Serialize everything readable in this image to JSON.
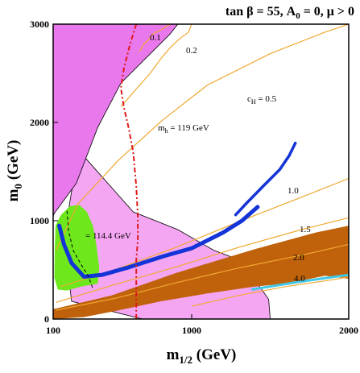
{
  "chart_data": {
    "type": "contour",
    "title": "tan β = 55, A",
    "title_sub": "0",
    "title_rest": " = 0, μ > 0",
    "xlabel": "m",
    "xlabel_sub": "1/2",
    "xlabel_unit": " (GeV)",
    "ylabel": "m",
    "ylabel_sub": "0",
    "ylabel_unit": " (GeV)",
    "xlim": [
      100,
      2000
    ],
    "ylim": [
      0,
      3000
    ],
    "x_ticks": [
      100,
      1000,
      2000
    ],
    "y_ticks": [
      0,
      1000,
      2000,
      3000
    ],
    "x_tick_labels": [
      "100",
      "1000",
      "2000"
    ],
    "y_tick_labels": [
      "0",
      "1000",
      "2000",
      "3000"
    ],
    "grid": false,
    "colors": {
      "magenta_region": "#e878ec",
      "pink_region": "#f4a6f2",
      "brown_region": "#c0620c",
      "green_region": "#6ee81c",
      "dark_matter_band": "#1434d8",
      "higgs_contour": "#e01818",
      "fine_tuning": "#f0a830",
      "cyan_edge": "#40c8e8"
    },
    "annotations": {
      "mh_line": "m",
      "mh_sub": "h",
      "mh_value": " = 119 GeV",
      "mh_lep": "= 114.4 GeV",
      "cH_label": "c",
      "cH_sub": "H",
      "cH_value": " =  0.5",
      "ft_01": "0.1",
      "ft_02": "0.2",
      "ft_10": "1.0",
      "ft_15": "1.5",
      "ft_20": "2.0",
      "ft_40": "4.0"
    },
    "regions": {
      "magenta_top_left": [
        [
          100,
          3000
        ],
        [
          910,
          3000
        ],
        [
          860,
          2900
        ],
        [
          540,
          2400
        ],
        [
          390,
          1950
        ],
        [
          250,
          1380
        ],
        [
          110,
          1080
        ],
        [
          100,
          1050
        ]
      ],
      "pink_central": [
        [
          280,
          1690
        ],
        [
          620,
          1090
        ],
        [
          910,
          910
        ],
        [
          1140,
          700
        ],
        [
          1320,
          590
        ],
        [
          1490,
          200
        ],
        [
          1500,
          0
        ],
        [
          680,
          0
        ],
        [
          220,
          180
        ],
        [
          170,
          820
        ],
        [
          220,
          1300
        ]
      ],
      "green_blob": [
        [
          115,
          950
        ],
        [
          150,
          1060
        ],
        [
          210,
          1150
        ],
        [
          270,
          1160
        ],
        [
          320,
          1090
        ],
        [
          360,
          940
        ],
        [
          380,
          760
        ],
        [
          400,
          520
        ],
        [
          390,
          360
        ],
        [
          280,
          330
        ],
        [
          190,
          290
        ],
        [
          130,
          300
        ],
        [
          108,
          420
        ],
        [
          110,
          700
        ]
      ],
      "brown_band": [
        [
          100,
          100
        ],
        [
          480,
          240
        ],
        [
          900,
          470
        ],
        [
          1400,
          710
        ],
        [
          1790,
          880
        ],
        [
          2000,
          950
        ],
        [
          2000,
          410
        ],
        [
          1850,
          440
        ],
        [
          1600,
          360
        ],
        [
          1400,
          330
        ],
        [
          1100,
          260
        ],
        [
          800,
          180
        ],
        [
          500,
          80
        ],
        [
          300,
          20
        ],
        [
          100,
          0
        ]
      ],
      "cyan_edge": [
        [
          1380,
          300
        ],
        [
          1500,
          330
        ],
        [
          1650,
          370
        ],
        [
          1820,
          410
        ],
        [
          1960,
          440
        ],
        [
          2000,
          450
        ]
      ]
    },
    "dark_matter_band": [
      [
        [
          140,
          950
        ],
        [
          170,
          760
        ],
        [
          220,
          570
        ],
        [
          300,
          430
        ],
        [
          420,
          450
        ],
        [
          600,
          530
        ],
        [
          820,
          640
        ],
        [
          1000,
          720
        ],
        [
          1200,
          880
        ],
        [
          1320,
          1000
        ],
        [
          1420,
          1140
        ]
      ],
      [
        [
          1280,
          1060
        ],
        [
          1350,
          1180
        ],
        [
          1460,
          1360
        ],
        [
          1560,
          1520
        ],
        [
          1620,
          1660
        ],
        [
          1660,
          1790
        ]
      ]
    ],
    "higgs_contours": [
      {
        "label": "m_h = 119 GeV",
        "points": [
          [
            640,
            3000
          ],
          [
            600,
            2800
          ],
          [
            560,
            2550
          ],
          [
            540,
            2350
          ],
          [
            560,
            2150
          ],
          [
            590,
            1950
          ],
          [
            620,
            1700
          ],
          [
            640,
            1350
          ],
          [
            650,
            1050
          ],
          [
            650,
            800
          ],
          [
            640,
            600
          ],
          [
            640,
            0
          ]
        ]
      },
      {
        "label": "m_h = 114.4 GeV",
        "points": [
          [
            190,
            1100
          ],
          [
            200,
            900
          ],
          [
            230,
            700
          ],
          [
            280,
            560
          ],
          [
            330,
            430
          ],
          [
            360,
            300
          ]
        ]
      }
    ],
    "fine_tuning_contours": [
      {
        "label": "0.1",
        "points": [
          [
            860,
            3000
          ],
          [
            820,
            2960
          ],
          [
            770,
            2920
          ],
          [
            740,
            2890
          ],
          [
            720,
            2840
          ],
          [
            690,
            2800
          ],
          [
            660,
            2720
          ]
        ]
      },
      {
        "label": "0.2",
        "points": [
          [
            1000,
            3000
          ],
          [
            980,
            2920
          ],
          [
            920,
            2850
          ],
          [
            860,
            2760
          ],
          [
            800,
            2650
          ],
          [
            730,
            2500
          ],
          [
            640,
            2340
          ],
          [
            540,
            2160
          ]
        ]
      },
      {
        "label": "0.5",
        "points": [
          [
            120,
            700
          ],
          [
            260,
            1170
          ],
          [
            520,
            1610
          ],
          [
            800,
            2010
          ],
          [
            1100,
            2380
          ],
          [
            1500,
            2700
          ],
          [
            1850,
            2920
          ],
          [
            2000,
            3000
          ]
        ]
      },
      {
        "label": "1.0",
        "points": [
          [
            150,
            330
          ],
          [
            500,
            500
          ],
          [
            900,
            730
          ],
          [
            1300,
            990
          ],
          [
            1700,
            1240
          ],
          [
            2000,
            1430
          ]
        ]
      },
      {
        "label": "1.5",
        "points": [
          [
            120,
            170
          ],
          [
            500,
            350
          ],
          [
            900,
            530
          ],
          [
            1300,
            730
          ],
          [
            1700,
            910
          ],
          [
            2000,
            1030
          ]
        ]
      },
      {
        "label": "2.0",
        "points": [
          [
            120,
            90
          ],
          [
            500,
            210
          ],
          [
            900,
            370
          ],
          [
            1300,
            520
          ],
          [
            1700,
            650
          ],
          [
            2000,
            760
          ]
        ]
      },
      {
        "label": "4.0",
        "points": [
          [
            1000,
            130
          ],
          [
            1300,
            240
          ],
          [
            1600,
            330
          ],
          [
            1900,
            400
          ],
          [
            2000,
            430
          ]
        ]
      }
    ]
  }
}
